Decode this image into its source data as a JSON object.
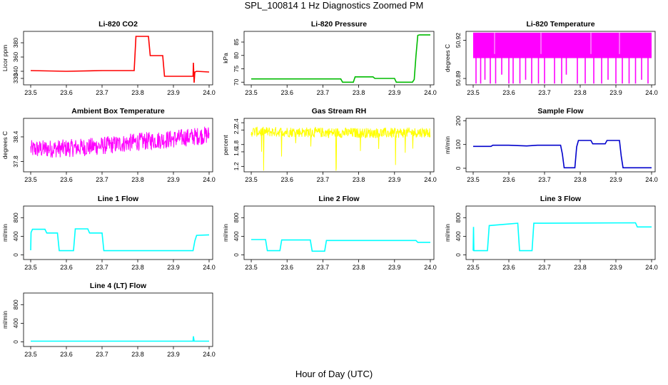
{
  "figure": {
    "title": "SPL_100814  1 Hz Diagnostics Zoomed PM",
    "xlabel": "Hour of Day (UTC)"
  },
  "chart_data": [
    {
      "type": "line",
      "title": "Li-820 CO2",
      "ylabel": "Licor ppm",
      "color": "#ff0000",
      "xlim": [
        23.48,
        24.01
      ],
      "ylim": [
        321,
        396
      ],
      "xticks": [
        "23.5",
        "23.6",
        "23.7",
        "23.8",
        "23.9",
        "24.0"
      ],
      "yticks": [
        {
          "v": 330,
          "label": "330"
        },
        {
          "v": 340,
          "label": "340"
        },
        {
          "v": 360,
          "label": "360"
        },
        {
          "v": 380,
          "label": "380"
        }
      ],
      "x": [
        23.5,
        23.6,
        23.7,
        23.79,
        23.795,
        23.83,
        23.835,
        23.87,
        23.875,
        23.955,
        23.956,
        23.958,
        23.96,
        23.965,
        24.0
      ],
      "y": [
        341,
        340,
        341,
        341,
        389,
        389,
        362,
        362,
        333,
        333,
        352,
        324,
        339,
        340,
        339
      ]
    },
    {
      "type": "line",
      "title": "Li-820 Pressure",
      "ylabel": "kPa",
      "color": "#00bb00",
      "xlim": [
        23.48,
        24.01
      ],
      "ylim": [
        69,
        89
      ],
      "xticks": [
        "23.5",
        "23.6",
        "23.7",
        "23.8",
        "23.9",
        "24.0"
      ],
      "yticks": [
        {
          "v": 70,
          "label": "70"
        },
        {
          "v": 75,
          "label": "75"
        },
        {
          "v": 80,
          "label": "80"
        },
        {
          "v": 85,
          "label": "85"
        }
      ],
      "x": [
        23.5,
        23.75,
        23.755,
        23.785,
        23.79,
        23.84,
        23.845,
        23.9,
        23.905,
        23.95,
        23.955,
        23.96,
        23.965,
        23.97,
        24.0
      ],
      "y": [
        71.2,
        71.2,
        70,
        70,
        72,
        72,
        71.4,
        71.4,
        70,
        70,
        71,
        80,
        87.5,
        87.7,
        87.7
      ]
    },
    {
      "type": "line",
      "title": "Li-820 Temperature",
      "ylabel": "degrees C",
      "color": "#ff00ff",
      "xlim": [
        23.48,
        24.01
      ],
      "ylim": [
        50.885,
        50.927
      ],
      "xticks": [
        "23.5",
        "23.6",
        "23.7",
        "23.8",
        "23.9",
        "24.0"
      ],
      "yticks": [
        {
          "v": 50.89,
          "label": "50.89"
        },
        {
          "v": 50.92,
          "label": "50.92"
        }
      ],
      "band": [
        50.906,
        50.926
      ],
      "x": [
        23.508,
        23.521,
        23.533,
        23.548,
        23.563,
        23.58,
        23.6,
        23.612,
        23.631,
        23.647,
        23.664,
        23.683,
        23.7,
        23.728,
        23.748,
        23.761,
        23.792,
        23.814,
        23.838,
        23.86,
        23.878,
        23.9,
        23.918,
        23.937,
        23.955,
        23.972,
        23.99
      ],
      "y": [
        50.886,
        50.886,
        50.889,
        50.886,
        50.886,
        50.893,
        50.886,
        50.886,
        50.886,
        50.889,
        50.886,
        50.886,
        50.886,
        50.886,
        50.886,
        50.893,
        50.886,
        50.886,
        50.886,
        50.886,
        50.889,
        50.886,
        50.886,
        50.886,
        50.886,
        50.889,
        50.886
      ]
    },
    {
      "type": "line",
      "title": "Ambient Box Temperature",
      "ylabel": "degrees C",
      "color": "#ff00ff",
      "xlim": [
        23.48,
        24.01
      ],
      "ylim": [
        37.55,
        38.85
      ],
      "xticks": [
        "23.5",
        "23.6",
        "23.7",
        "23.8",
        "23.9",
        "24.0"
      ],
      "yticks": [
        {
          "v": 37.8,
          "label": "37.8"
        },
        {
          "v": 38.4,
          "label": "38.4"
        }
      ],
      "x": [
        23.5,
        23.6,
        23.7,
        23.8,
        23.9,
        24.0
      ],
      "y": [
        38.1,
        38.12,
        38.18,
        38.28,
        38.35,
        38.45
      ]
    },
    {
      "type": "line",
      "title": "Gas Stream RH",
      "ylabel": "percent",
      "color": "#ffff00",
      "xlim": [
        23.48,
        24.01
      ],
      "ylim": [
        1.05,
        2.52
      ],
      "xticks": [
        "23.5",
        "23.6",
        "23.7",
        "23.8",
        "23.9",
        "24.0"
      ],
      "yticks": [
        {
          "v": 1.2,
          "label": "1.2"
        },
        {
          "v": 1.6,
          "label": "1.6"
        },
        {
          "v": 1.8,
          "label": "1.8"
        },
        {
          "v": 2.2,
          "label": "2.2"
        },
        {
          "v": 2.4,
          "label": "2.4"
        }
      ],
      "x": [
        23.5,
        23.6,
        23.7,
        23.8,
        23.9,
        24.0
      ],
      "y": [
        2.15,
        2.15,
        2.13,
        2.12,
        2.12,
        2.14
      ]
    },
    {
      "type": "line",
      "title": "Sample Flow",
      "ylabel": "ml/min",
      "color": "#0000cc",
      "xlim": [
        23.48,
        24.01
      ],
      "ylim": [
        -15,
        210
      ],
      "xticks": [
        "23.5",
        "23.6",
        "23.7",
        "23.8",
        "23.9",
        "24.0"
      ],
      "yticks": [
        {
          "v": 0,
          "label": "0"
        },
        {
          "v": 100,
          "label": "100"
        },
        {
          "v": 200,
          "label": "200"
        }
      ],
      "x": [
        23.5,
        23.55,
        23.555,
        23.6,
        23.65,
        23.68,
        23.7,
        23.745,
        23.75,
        23.755,
        23.785,
        23.79,
        23.795,
        23.83,
        23.835,
        23.87,
        23.875,
        23.91,
        23.915,
        23.92,
        24.0
      ],
      "y": [
        92,
        92,
        97,
        97,
        94,
        97,
        97,
        97,
        60,
        2,
        2,
        90,
        117,
        117,
        103,
        103,
        117,
        117,
        50,
        2,
        2
      ]
    },
    {
      "type": "line",
      "title": "Line 1 Flow",
      "ylabel": "ml/min",
      "color": "#00ffff",
      "xlim": [
        23.48,
        24.01
      ],
      "ylim": [
        -100,
        1050
      ],
      "xticks": [
        "23.5",
        "23.6",
        "23.7",
        "23.8",
        "23.9",
        "24.0"
      ],
      "yticks": [
        {
          "v": 0,
          "label": "0"
        },
        {
          "v": 400,
          "label": "400"
        },
        {
          "v": 800,
          "label": "800"
        }
      ],
      "x": [
        23.5,
        23.501,
        23.505,
        23.54,
        23.545,
        23.575,
        23.58,
        23.62,
        23.625,
        23.66,
        23.665,
        23.7,
        23.705,
        23.955,
        23.96,
        23.965,
        24.0
      ],
      "y": [
        100,
        480,
        550,
        550,
        470,
        470,
        90,
        90,
        560,
        560,
        470,
        470,
        90,
        90,
        300,
        420,
        430
      ]
    },
    {
      "type": "line",
      "title": "Line 2 Flow",
      "ylabel": "ml/min",
      "color": "#00ffff",
      "xlim": [
        23.48,
        24.01
      ],
      "ylim": [
        -100,
        1050
      ],
      "xticks": [
        "23.5",
        "23.6",
        "23.7",
        "23.8",
        "23.9",
        "24.0"
      ],
      "yticks": [
        {
          "v": 0,
          "label": "0"
        },
        {
          "v": 400,
          "label": "400"
        },
        {
          "v": 800,
          "label": "800"
        }
      ],
      "x": [
        23.5,
        23.54,
        23.545,
        23.58,
        23.585,
        23.665,
        23.67,
        23.705,
        23.71,
        23.96,
        23.965,
        24.0
      ],
      "y": [
        330,
        330,
        90,
        90,
        320,
        320,
        80,
        80,
        310,
        310,
        270,
        270
      ]
    },
    {
      "type": "line",
      "title": "Line 3 Flow",
      "ylabel": "ml/min",
      "color": "#00ffff",
      "xlim": [
        23.48,
        24.01
      ],
      "ylim": [
        -100,
        1050
      ],
      "xticks": [
        "23.5",
        "23.6",
        "23.7",
        "23.8",
        "23.9",
        "24.0"
      ],
      "yticks": [
        {
          "v": 0,
          "label": "0"
        },
        {
          "v": 400,
          "label": "400"
        },
        {
          "v": 800,
          "label": "800"
        }
      ],
      "x": [
        23.5,
        23.501,
        23.502,
        23.54,
        23.545,
        23.625,
        23.63,
        23.665,
        23.67,
        23.955,
        23.96,
        24.0
      ],
      "y": [
        90,
        600,
        90,
        90,
        630,
        680,
        90,
        90,
        680,
        690,
        600,
        600
      ]
    },
    {
      "type": "line",
      "title": "Line 4 (LT) Flow",
      "ylabel": "ml/min",
      "color": "#00ffff",
      "xlim": [
        23.48,
        24.01
      ],
      "ylim": [
        -100,
        1050
      ],
      "xticks": [
        "23.5",
        "23.6",
        "23.7",
        "23.8",
        "23.9",
        "24.0"
      ],
      "yticks": [
        {
          "v": 0,
          "label": "0"
        },
        {
          "v": 400,
          "label": "400"
        },
        {
          "v": 800,
          "label": "800"
        }
      ],
      "x": [
        23.5,
        23.955,
        23.956,
        23.958,
        23.96,
        24.0
      ],
      "y": [
        15,
        15,
        120,
        15,
        15,
        15
      ]
    }
  ]
}
